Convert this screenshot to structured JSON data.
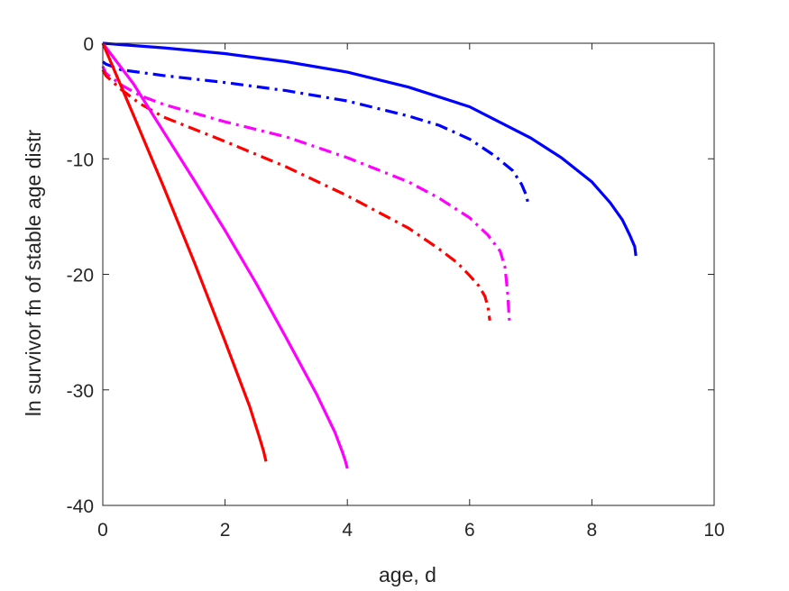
{
  "chart_data": {
    "type": "line",
    "title": "",
    "xlabel": "age, d",
    "ylabel": "ln survivor fn of stable age distr",
    "xlim": [
      0,
      10
    ],
    "ylim": [
      -40,
      0
    ],
    "xticks": [
      0,
      2,
      4,
      6,
      8,
      10
    ],
    "yticks": [
      0,
      -10,
      -20,
      -30,
      -40
    ],
    "grid": false,
    "legend": "none",
    "series": [
      {
        "color": "#0000ff",
        "style": "solid",
        "x": [
          0,
          1,
          2,
          3,
          4,
          5,
          6,
          7,
          7.5,
          8,
          8.3,
          8.5,
          8.62,
          8.7,
          8.72
        ],
        "y": [
          0,
          -0.4,
          -0.9,
          -1.6,
          -2.5,
          -3.8,
          -5.5,
          -8.2,
          -9.9,
          -12.0,
          -13.8,
          -15.3,
          -16.6,
          -17.6,
          -18.4
        ]
      },
      {
        "color": "#0000ff",
        "style": "dashdot",
        "x": [
          0,
          0.05,
          0.3,
          1,
          2,
          3,
          4,
          5,
          5.5,
          6,
          6.4,
          6.7,
          6.85,
          6.93,
          6.96
        ],
        "y": [
          -1.6,
          -1.8,
          -2.3,
          -2.8,
          -3.4,
          -4.1,
          -5.0,
          -6.3,
          -7.1,
          -8.3,
          -9.7,
          -11.0,
          -12.2,
          -13.2,
          -14.0
        ]
      },
      {
        "color": "#ff00ff",
        "style": "dashdot",
        "x": [
          0,
          0.05,
          0.3,
          0.6,
          1,
          2,
          3,
          4,
          5,
          5.5,
          6,
          6.3,
          6.5,
          6.58,
          6.62,
          6.65
        ],
        "y": [
          -2.0,
          -2.6,
          -3.6,
          -4.5,
          -5.3,
          -6.8,
          -8.1,
          -9.9,
          -12.0,
          -13.4,
          -15.1,
          -16.6,
          -18.0,
          -19.4,
          -21.5,
          -24.0
        ]
      },
      {
        "color": "#ff0000",
        "style": "dashdot",
        "x": [
          0,
          0.05,
          0.3,
          0.6,
          1,
          2,
          3,
          4,
          5,
          5.5,
          5.8,
          6.0,
          6.15,
          6.25,
          6.3,
          6.33
        ],
        "y": [
          -2.3,
          -2.8,
          -4.0,
          -5.2,
          -6.4,
          -8.5,
          -10.7,
          -13.2,
          -16.0,
          -17.8,
          -19.0,
          -20.1,
          -21.0,
          -21.9,
          -22.8,
          -24.0
        ]
      },
      {
        "color": "#ff00ff",
        "style": "solid",
        "x": [
          0,
          0.5,
          1,
          1.5,
          2,
          2.5,
          3,
          3.5,
          3.8,
          3.92,
          3.97,
          4.0
        ],
        "y": [
          0,
          -3.5,
          -7.7,
          -11.9,
          -16.2,
          -20.7,
          -25.5,
          -30.4,
          -33.7,
          -35.4,
          -36.2,
          -36.8
        ]
      },
      {
        "color": "#ff0000",
        "style": "solid",
        "x": [
          0,
          0.5,
          1,
          1.5,
          2,
          2.4,
          2.55,
          2.63,
          2.67
        ],
        "y": [
          0,
          -6.2,
          -12.5,
          -19.0,
          -25.8,
          -31.4,
          -33.9,
          -35.3,
          -36.2
        ]
      }
    ]
  }
}
